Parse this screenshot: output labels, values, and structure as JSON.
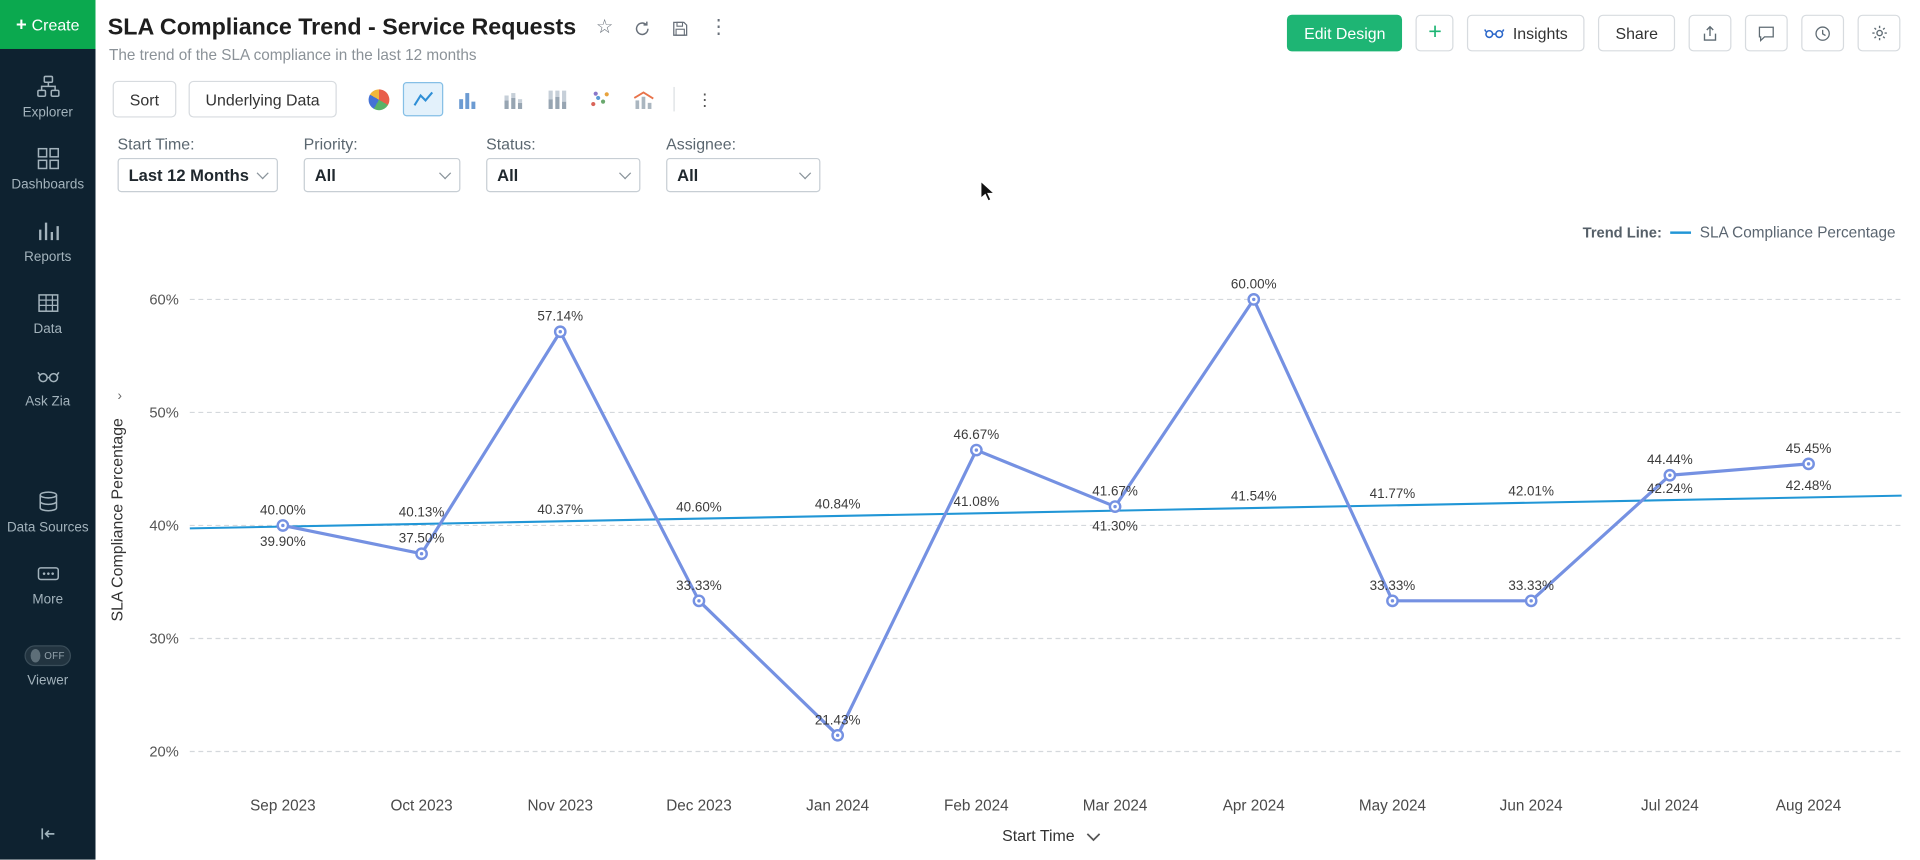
{
  "sidebar": {
    "create_label": "Create",
    "items": [
      {
        "label": "Explorer",
        "icon": "explorer-icon"
      },
      {
        "label": "Dashboards",
        "icon": "dashboards-icon"
      },
      {
        "label": "Reports",
        "icon": "reports-icon"
      },
      {
        "label": "Data",
        "icon": "data-icon"
      },
      {
        "label": "Ask Zia",
        "icon": "zia-icon"
      },
      {
        "label": "Data Sources",
        "icon": "data-sources-icon"
      },
      {
        "label": "More",
        "icon": "more-icon"
      }
    ],
    "viewer": {
      "label": "Viewer",
      "toggle": "OFF"
    }
  },
  "header": {
    "title": "SLA Compliance Trend - Service Requests",
    "subtitle": "The trend of the SLA compliance in the last 12 months",
    "buttons": {
      "edit_design": "Edit Design",
      "insights": "Insights",
      "share": "Share"
    }
  },
  "toolbar": {
    "sort_label": "Sort",
    "underlying_data_label": "Underlying Data"
  },
  "filters": [
    {
      "label": "Start Time:",
      "value": "Last 12 Months"
    },
    {
      "label": "Priority:",
      "value": "All"
    },
    {
      "label": "Status:",
      "value": "All"
    },
    {
      "label": "Assignee:",
      "value": "All"
    }
  ],
  "legend": {
    "label": "Trend Line:",
    "series": "SLA Compliance Percentage"
  },
  "icons": {
    "plus_glyph": "+",
    "star_glyph": "☆",
    "kebab_glyph": "⋮",
    "title_actions": [
      "favorite-star-icon",
      "refresh-icon",
      "save-icon",
      "kebab-menu-icon"
    ],
    "header_action_icons": [
      "export-icon",
      "comment-icon",
      "history-icon",
      "settings-gear-icon"
    ],
    "chart_type_icons": [
      "pie-chart-icon",
      "line-chart-icon",
      "bar-chart-icon",
      "stacked-bar-icon",
      "full-stacked-bar-icon",
      "scatter-plot-icon",
      "combo-chart-icon",
      "more-chart-types-icon"
    ],
    "selected_chart_type": "line-chart-icon"
  },
  "colors": {
    "accent_green": "#0ba94f",
    "edit_design_green": "#1eb574",
    "series_line": "#7591e2",
    "trend_line": "#2196d6",
    "sidebar_bg": "#0e2230"
  },
  "chart_data": {
    "type": "line",
    "categories": [
      "Sep 2023",
      "Oct 2023",
      "Nov 2023",
      "Dec 2023",
      "Jan 2024",
      "Feb 2024",
      "Mar 2024",
      "Apr 2024",
      "May 2024",
      "Jun 2024",
      "Jul 2024",
      "Aug 2024"
    ],
    "series": [
      {
        "name": "SLA Compliance Percentage",
        "values": [
          40.0,
          37.5,
          57.14,
          33.33,
          21.43,
          46.67,
          41.67,
          60.0,
          33.33,
          33.33,
          44.44,
          45.45
        ],
        "labels": [
          "40.00%",
          "37.50%",
          "57.14%",
          "33.33%",
          "21.43%",
          "46.67%",
          "41.67%",
          "60.00%",
          "33.33%",
          "33.33%",
          "44.44%",
          "45.45%"
        ],
        "color": "#7591e2",
        "marker": "circle"
      },
      {
        "name": "Trend Line",
        "values": [
          39.9,
          40.13,
          40.37,
          40.6,
          40.84,
          41.08,
          41.3,
          41.54,
          41.77,
          42.01,
          42.24,
          42.48
        ],
        "labels": [
          "39.90%",
          "40.13%",
          "40.37%",
          "40.60%",
          "40.84%",
          "41.08%",
          "41.30%",
          "41.54%",
          "41.77%",
          "42.01%",
          "42.24%",
          "42.48%"
        ],
        "label_side": [
          "below",
          "above",
          "above",
          "above",
          "above",
          "above",
          "below",
          "above",
          "above",
          "above",
          "above",
          "above"
        ],
        "color": "#2196d6"
      }
    ],
    "xlabel": "Start Time",
    "ylabel": "SLA Compliance Percentage",
    "yticks": [
      20,
      30,
      40,
      50,
      60
    ],
    "ytick_labels": [
      "20%",
      "30%",
      "40%",
      "50%",
      "60%"
    ],
    "ylim": [
      16.5,
      64.5
    ],
    "grid": "horizontal-dashed",
    "legend_position": "top-right"
  }
}
